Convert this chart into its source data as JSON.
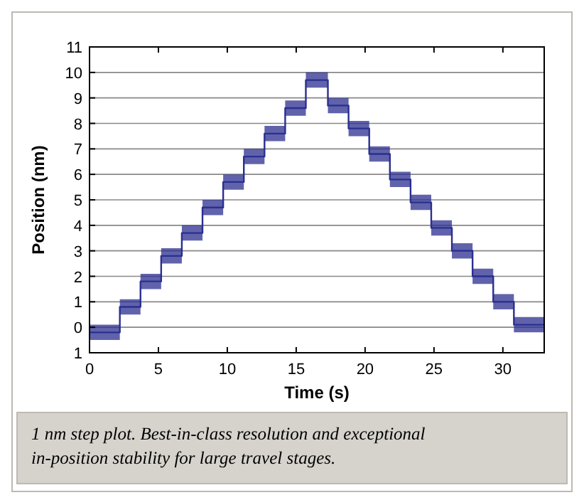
{
  "chart_data": {
    "type": "line",
    "xlabel": "Time (s)",
    "ylabel": "Position (nm)",
    "annotations": [
      "1 nm step plot. Best-in-class resolution and exceptional in-position stability for large travel stages."
    ],
    "xlim": [
      0,
      33
    ],
    "xticks": [
      0,
      5,
      10,
      15,
      20,
      25,
      30
    ],
    "ylim": [
      -1,
      11
    ],
    "yticks": [
      {
        "value": -1,
        "label": "1"
      },
      0,
      1,
      2,
      3,
      4,
      5,
      6,
      7,
      8,
      9,
      10,
      11
    ],
    "grid": "y",
    "marker": "none",
    "line_style": "solid",
    "series": [
      {
        "color": "#2b2f8f",
        "x": [
          0,
          2.2,
          2.2,
          3.7,
          3.7,
          5.2,
          5.2,
          6.7,
          6.7,
          8.2,
          8.2,
          9.7,
          9.7,
          11.2,
          11.2,
          12.7,
          12.7,
          14.2,
          14.2,
          15.7,
          15.7,
          17.3,
          17.3,
          18.8,
          18.8,
          20.3,
          20.3,
          21.8,
          21.8,
          23.3,
          23.3,
          24.8,
          24.8,
          26.3,
          26.3,
          27.8,
          27.8,
          29.3,
          29.3,
          30.8,
          30.8,
          33
        ],
        "values": [
          -0.2,
          -0.2,
          0.8,
          0.8,
          1.8,
          1.8,
          2.8,
          2.8,
          3.7,
          3.7,
          4.7,
          4.7,
          5.7,
          5.7,
          6.7,
          6.7,
          7.6,
          7.6,
          8.6,
          8.6,
          9.7,
          9.7,
          8.7,
          8.7,
          7.8,
          7.8,
          6.8,
          6.8,
          5.8,
          5.8,
          4.9,
          4.9,
          3.9,
          3.9,
          3.0,
          3.0,
          2.0,
          2.0,
          1.0,
          1.0,
          0.1,
          0.1
        ],
        "lower": [
          -0.5,
          -0.5,
          0.5,
          0.5,
          1.5,
          1.5,
          2.5,
          2.5,
          3.4,
          3.4,
          4.4,
          4.4,
          5.4,
          5.4,
          6.4,
          6.4,
          7.3,
          7.3,
          8.3,
          8.3,
          9.4,
          9.4,
          8.4,
          8.4,
          7.5,
          7.5,
          6.5,
          6.5,
          5.5,
          5.5,
          4.6,
          4.6,
          3.6,
          3.6,
          2.7,
          2.7,
          1.7,
          1.7,
          0.7,
          0.7,
          -0.2,
          -0.2
        ],
        "upper": [
          0.1,
          0.1,
          1.1,
          1.1,
          2.1,
          2.1,
          3.1,
          3.1,
          4.0,
          4.0,
          5.0,
          5.0,
          6.0,
          6.0,
          7.0,
          7.0,
          7.9,
          7.9,
          8.9,
          8.9,
          10.0,
          10.0,
          9.0,
          9.0,
          8.1,
          8.1,
          7.1,
          7.1,
          6.1,
          6.1,
          5.2,
          5.2,
          4.2,
          4.2,
          3.3,
          3.3,
          2.3,
          2.3,
          1.3,
          1.3,
          0.4,
          0.4
        ]
      }
    ]
  }
}
